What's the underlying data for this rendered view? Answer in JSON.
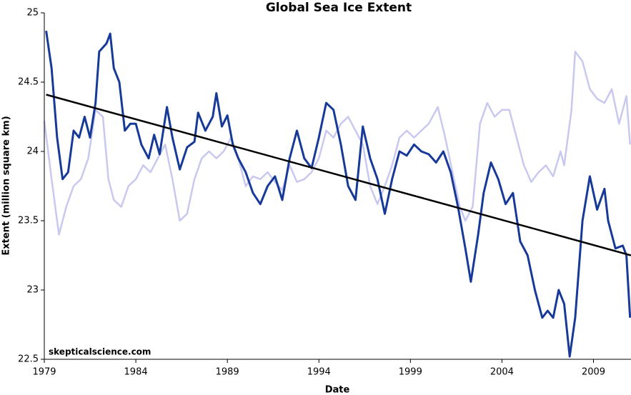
{
  "chart_data": {
    "type": "line",
    "title": "Global Sea Ice Extent",
    "xlabel": "Date",
    "ylabel": "Extent (million square km)",
    "annotation": "skepticalscience.com",
    "xlim": [
      1979,
      2011.05
    ],
    "ylim": [
      22.5,
      25
    ],
    "xticks": [
      1979,
      1984,
      1989,
      1994,
      1999,
      2004,
      2009
    ],
    "yticks": [
      22.5,
      23,
      23.5,
      24,
      24.5,
      25
    ],
    "series": [
      {
        "color": "#c8c8f0",
        "width": 2.5,
        "x": [
          1979.0,
          1979.4,
          1979.8,
          1980.2,
          1980.6,
          1981.0,
          1981.4,
          1981.8,
          1982.2,
          1982.5,
          1982.8,
          1983.2,
          1983.6,
          1984.0,
          1984.4,
          1984.8,
          1985.2,
          1985.6,
          1986.0,
          1986.4,
          1986.8,
          1987.2,
          1987.6,
          1988.0,
          1988.4,
          1988.8,
          1989.2,
          1989.6,
          1990.0,
          1990.4,
          1990.8,
          1991.2,
          1991.6,
          1992.0,
          1992.4,
          1992.8,
          1993.2,
          1993.6,
          1994.0,
          1994.4,
          1994.8,
          1995.2,
          1995.6,
          1996.0,
          1996.4,
          1996.8,
          1997.2,
          1997.6,
          1998.0,
          1998.4,
          1998.8,
          1999.2,
          1999.6,
          2000.0,
          2000.5,
          2000.9,
          2001.3,
          2001.7,
          2002.0,
          2002.4,
          2002.8,
          2003.2,
          2003.6,
          2004.0,
          2004.4,
          2004.8,
          2005.2,
          2005.6,
          2006.0,
          2006.4,
          2006.8,
          2007.2,
          2007.4,
          2007.8,
          2008.0,
          2008.4,
          2008.8,
          2009.2,
          2009.6,
          2010.0,
          2010.4,
          2010.8,
          2011.0
        ],
        "values": [
          24.22,
          23.8,
          23.4,
          23.6,
          23.75,
          23.8,
          23.95,
          24.3,
          24.25,
          23.8,
          23.65,
          23.6,
          23.75,
          23.8,
          23.9,
          23.85,
          23.95,
          24.05,
          23.8,
          23.5,
          23.55,
          23.8,
          23.95,
          24.0,
          23.95,
          24.0,
          24.1,
          23.95,
          23.75,
          23.82,
          23.8,
          23.85,
          23.78,
          23.72,
          23.9,
          23.78,
          23.8,
          23.85,
          23.95,
          24.15,
          24.1,
          24.2,
          24.25,
          24.15,
          24.05,
          23.75,
          23.62,
          23.75,
          23.9,
          24.1,
          24.15,
          24.1,
          24.15,
          24.2,
          24.32,
          24.1,
          23.85,
          23.6,
          23.5,
          23.6,
          24.2,
          24.35,
          24.25,
          24.3,
          24.3,
          24.1,
          23.9,
          23.78,
          23.85,
          23.9,
          23.82,
          24.0,
          23.9,
          24.3,
          24.72,
          24.65,
          24.45,
          24.38,
          24.35,
          24.45,
          24.2,
          24.4,
          24.05
        ]
      },
      {
        "color": "#173a99",
        "width": 3,
        "x": [
          1979.1,
          1979.4,
          1979.7,
          1980.0,
          1980.3,
          1980.6,
          1980.9,
          1981.2,
          1981.5,
          1981.8,
          1982.0,
          1982.4,
          1982.6,
          1982.8,
          1983.1,
          1983.4,
          1983.7,
          1984.0,
          1984.3,
          1984.7,
          1985.0,
          1985.3,
          1985.7,
          1986.0,
          1986.4,
          1986.8,
          1987.2,
          1987.4,
          1987.8,
          1988.2,
          1988.4,
          1988.7,
          1989.0,
          1989.3,
          1989.6,
          1990.0,
          1990.4,
          1990.8,
          1991.2,
          1991.6,
          1992.0,
          1992.4,
          1992.8,
          1993.2,
          1993.6,
          1994.0,
          1994.4,
          1994.8,
          1995.2,
          1995.6,
          1996.0,
          1996.4,
          1996.8,
          1997.2,
          1997.6,
          1998.0,
          1998.4,
          1998.8,
          1999.2,
          1999.6,
          2000.0,
          2000.4,
          2000.8,
          2001.2,
          2001.6,
          2002.0,
          2002.3,
          2002.7,
          2003.0,
          2003.4,
          2003.8,
          2004.2,
          2004.6,
          2005.0,
          2005.4,
          2005.8,
          2006.2,
          2006.5,
          2006.8,
          2007.1,
          2007.4,
          2007.7,
          2008.0,
          2008.4,
          2008.8,
          2009.2,
          2009.6,
          2009.8,
          2010.2,
          2010.6,
          2010.8,
          2011.0
        ],
        "values": [
          24.87,
          24.6,
          24.1,
          23.8,
          23.85,
          24.15,
          24.1,
          24.25,
          24.1,
          24.35,
          24.72,
          24.78,
          24.85,
          24.6,
          24.5,
          24.15,
          24.2,
          24.2,
          24.05,
          23.95,
          24.12,
          23.98,
          24.32,
          24.1,
          23.87,
          24.03,
          24.07,
          24.28,
          24.15,
          24.25,
          24.42,
          24.18,
          24.26,
          24.05,
          23.95,
          23.85,
          23.7,
          23.62,
          23.75,
          23.82,
          23.65,
          23.95,
          24.15,
          23.95,
          23.88,
          24.1,
          24.35,
          24.3,
          24.05,
          23.75,
          23.65,
          24.18,
          23.95,
          23.8,
          23.55,
          23.8,
          24.0,
          23.97,
          24.05,
          24.0,
          23.98,
          23.92,
          24.0,
          23.85,
          23.6,
          23.3,
          23.06,
          23.4,
          23.7,
          23.92,
          23.8,
          23.62,
          23.7,
          23.35,
          23.25,
          23.0,
          22.8,
          22.85,
          22.8,
          23.0,
          22.9,
          22.52,
          22.8,
          23.5,
          23.82,
          23.58,
          23.73,
          23.5,
          23.3,
          23.32,
          23.25,
          22.8
        ]
      },
      {
        "color": "#000000",
        "width": 2.5,
        "x": [
          1979.1,
          2011.05
        ],
        "values": [
          24.41,
          23.25
        ]
      }
    ]
  }
}
